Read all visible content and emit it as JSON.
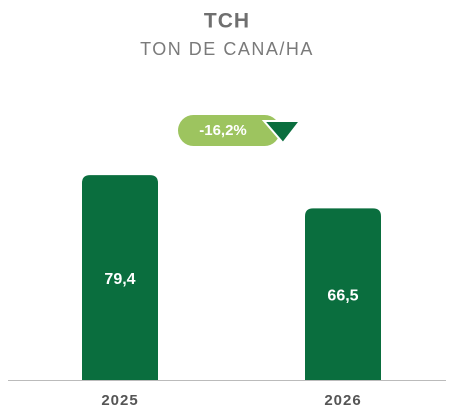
{
  "chart_data": {
    "type": "bar",
    "title": "TCH",
    "subtitle": "TON DE CANA/HA",
    "categories": [
      "2025",
      "2026"
    ],
    "values": [
      79.4,
      66.5
    ],
    "value_labels": [
      "79,4",
      "66,5"
    ],
    "color": "#0a6e3e",
    "ylim": [
      0,
      100
    ],
    "annotation": "-16,2%"
  }
}
